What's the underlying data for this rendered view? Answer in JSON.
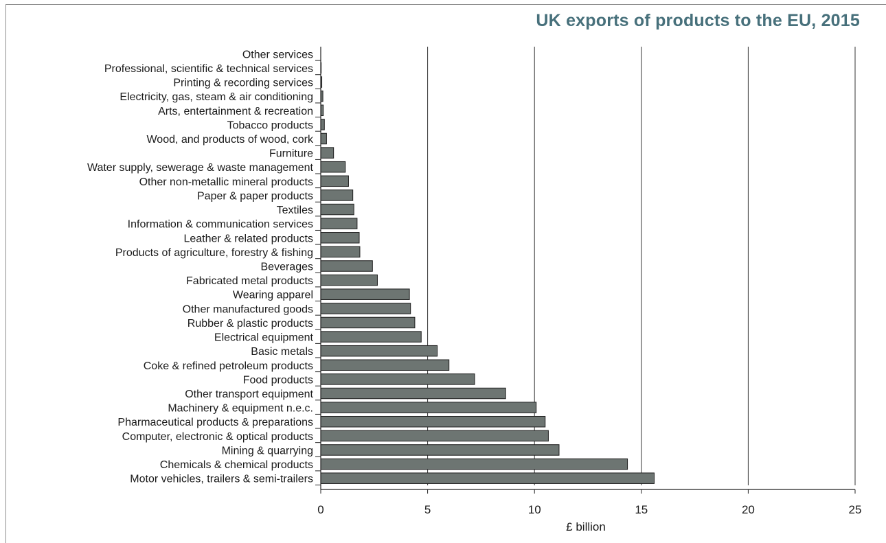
{
  "chart_data": {
    "type": "bar",
    "orientation": "horizontal",
    "title": "UK exports of products to the EU, 2015",
    "xlabel": "£ billion",
    "ylabel": "",
    "xlim": [
      0,
      25
    ],
    "xticks": [
      0,
      5,
      10,
      15,
      20,
      25
    ],
    "grid": "vertical",
    "colors": {
      "bar": "#6d7572",
      "bar_stroke": "#1e1e1e",
      "title": "#47707b",
      "grid": "#333333"
    },
    "categories": [
      "Other services",
      "Professional, scientific & technical services",
      "Printing & recording services",
      "Electricity, gas, steam & air conditioning",
      "Arts, entertainment & recreation",
      "Tobacco products",
      "Wood, and products of wood, cork",
      "Furniture",
      "Water supply, sewerage & waste management",
      "Other non-metallic mineral products",
      "Paper & paper products",
      "Textiles",
      "Information & communication services",
      "Leather & related products",
      "Products of agriculture, forestry & fishing",
      "Beverages",
      "Fabricated metal products",
      "Wearing apparel",
      "Other manufactured goods",
      "Rubber & plastic products",
      "Electrical equipment",
      "Basic metals",
      "Coke & refined petroleum products",
      "Food products",
      "Other transport equipment",
      "Machinery & equipment n.e.c.",
      "Pharmaceutical products & preparations",
      "Computer, electronic & optical products",
      "Mining & quarrying",
      "Chemicals & chemical products",
      "Motor vehicles, trailers & semi-trailers"
    ],
    "values": [
      0.0,
      0.02,
      0.05,
      0.1,
      0.12,
      0.17,
      0.27,
      0.6,
      1.15,
      1.3,
      1.5,
      1.55,
      1.7,
      1.8,
      1.83,
      2.42,
      2.65,
      4.15,
      4.2,
      4.4,
      4.7,
      5.45,
      6.0,
      7.2,
      8.65,
      10.08,
      10.5,
      10.65,
      11.15,
      14.35,
      15.6
    ]
  }
}
